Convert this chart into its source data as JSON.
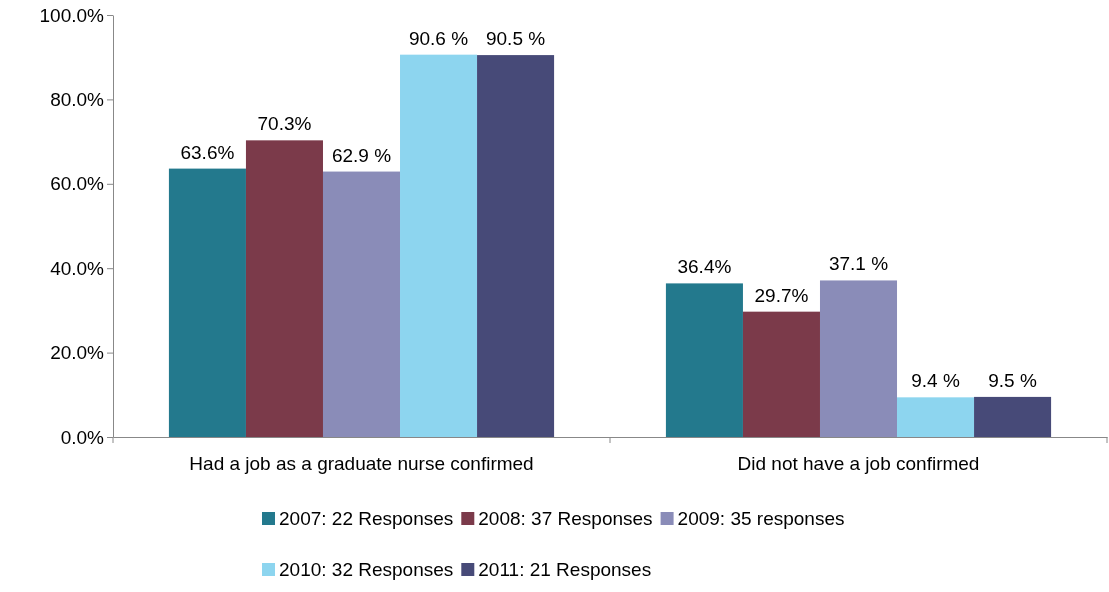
{
  "chart_data": {
    "type": "bar",
    "categories": [
      "Had a job as a graduate nurse confirmed",
      "Did not have a job confirmed"
    ],
    "series": [
      {
        "name": "2007: 22 Responses",
        "color": "#23798d",
        "values": [
          63.6,
          36.4
        ],
        "value_labels": [
          "63.6%",
          "36.4%"
        ]
      },
      {
        "name": "2008: 37 Responses",
        "color": "#7b3a4a",
        "values": [
          70.3,
          29.7
        ],
        "value_labels": [
          "70.3%",
          "29.7%"
        ]
      },
      {
        "name": "2009: 35 responses",
        "color": "#8a8cb8",
        "values": [
          62.9,
          37.1
        ],
        "value_labels": [
          "62.9 %",
          "37.1 %"
        ]
      },
      {
        "name": "2010: 32 Responses",
        "color": "#8dd5ef",
        "values": [
          90.6,
          9.4
        ],
        "value_labels": [
          "90.6 %",
          "9.4 %"
        ]
      },
      {
        "name": "2011: 21 Responses",
        "color": "#474a78",
        "values": [
          90.5,
          9.5
        ],
        "value_labels": [
          "90.5 %",
          "9.5 %"
        ]
      }
    ],
    "ylim": [
      0,
      100
    ],
    "yticks": [
      {
        "value": 0,
        "label": "0.0%"
      },
      {
        "value": 20,
        "label": "20.0%"
      },
      {
        "value": 40,
        "label": "40.0%"
      },
      {
        "value": 60,
        "label": "60.0%"
      },
      {
        "value": 80,
        "label": "80.0%"
      },
      {
        "value": 100,
        "label": "100.0%"
      }
    ],
    "grid": false,
    "legend": "bottom"
  }
}
